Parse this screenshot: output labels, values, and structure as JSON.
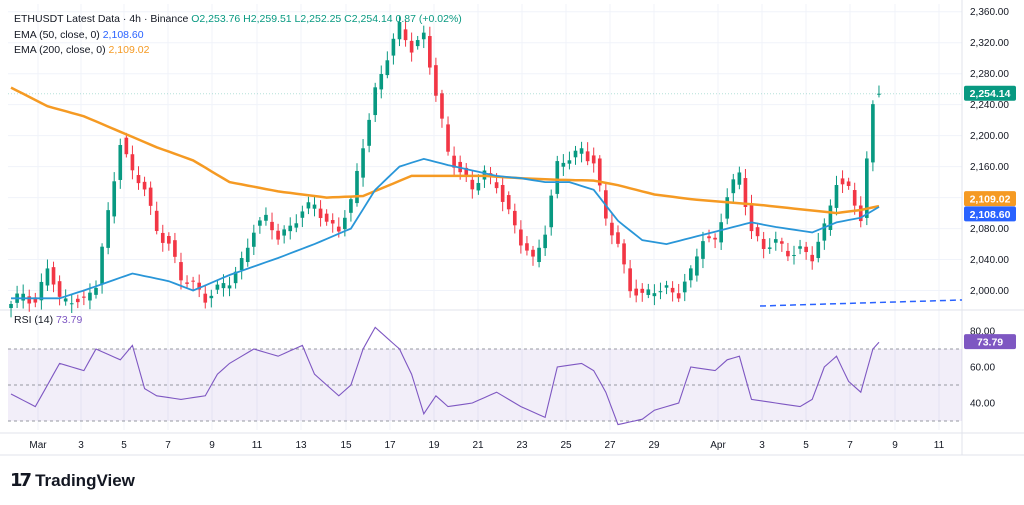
{
  "legend": {
    "symbol": "ETHUSDT Latest Data · 4h · Binance",
    "ohlc": "O2,253.76  H2,259.51  L2,252.25  C2,254.14  0.87 (+0.02%)",
    "ema50_label": "EMA (50, close, 0)",
    "ema50_value": "2,108.60",
    "ema200_label": "EMA (200, close, 0)",
    "ema200_value": "2,109.02",
    "rsi_label": "RSI (14)",
    "rsi_value": "73.79"
  },
  "brand": {
    "name": "TradingView"
  },
  "colors": {
    "up": "#089981",
    "down": "#f23645",
    "ema50": "#2962ff",
    "ema200": "#f59a23",
    "rsi": "#7e57c2"
  },
  "chart_data": {
    "type": "candlestick",
    "title": "ETHUSDT Latest Data · 4h · Binance",
    "price_ylim": [
      1980,
      2370
    ],
    "price_ticks": [
      "2,360.00",
      "2,320.00",
      "2,280.00",
      "2,240.00",
      "2,200.00",
      "2,160.00",
      "2,120.00",
      "2,080.00",
      "2,040.00",
      "2,000.00"
    ],
    "x_ticks": [
      "Mar",
      "3",
      "5",
      "7",
      "9",
      "11",
      "13",
      "15",
      "17",
      "19",
      "21",
      "23",
      "25",
      "27",
      "29",
      "Apr",
      "3",
      "5",
      "7",
      "9",
      "11"
    ],
    "price_anchors": [
      [
        0,
        1979
      ],
      [
        2,
        1998
      ],
      [
        4,
        1985
      ],
      [
        6,
        2030
      ],
      [
        8,
        1985
      ],
      [
        10,
        1992
      ],
      [
        12,
        1986
      ],
      [
        14,
        2005
      ],
      [
        16,
        2100
      ],
      [
        18,
        2195
      ],
      [
        20,
        2150
      ],
      [
        22,
        2130
      ],
      [
        24,
        2080
      ],
      [
        26,
        2060
      ],
      [
        28,
        2012
      ],
      [
        30,
        2010
      ],
      [
        32,
        1992
      ],
      [
        34,
        2000
      ],
      [
        36,
        2010
      ],
      [
        38,
        2040
      ],
      [
        40,
        2080
      ],
      [
        42,
        2090
      ],
      [
        44,
        2070
      ],
      [
        46,
        2085
      ],
      [
        48,
        2100
      ],
      [
        50,
        2110
      ],
      [
        52,
        2090
      ],
      [
        54,
        2080
      ],
      [
        56,
        2110
      ],
      [
        58,
        2190
      ],
      [
        60,
        2260
      ],
      [
        62,
        2300
      ],
      [
        64,
        2340
      ],
      [
        66,
        2315
      ],
      [
        68,
        2330
      ],
      [
        70,
        2250
      ],
      [
        72,
        2180
      ],
      [
        74,
        2155
      ],
      [
        76,
        2130
      ],
      [
        78,
        2150
      ],
      [
        80,
        2140
      ],
      [
        82,
        2100
      ],
      [
        84,
        2060
      ],
      [
        86,
        2040
      ],
      [
        88,
        2080
      ],
      [
        90,
        2160
      ],
      [
        92,
        2170
      ],
      [
        94,
        2185
      ],
      [
        96,
        2165
      ],
      [
        98,
        2090
      ],
      [
        100,
        2060
      ],
      [
        102,
        2005
      ],
      [
        104,
        1990
      ],
      [
        106,
        2000
      ],
      [
        108,
        2005
      ],
      [
        110,
        1995
      ],
      [
        112,
        2020
      ],
      [
        114,
        2070
      ],
      [
        116,
        2065
      ],
      [
        118,
        2120
      ],
      [
        120,
        2150
      ],
      [
        122,
        2080
      ],
      [
        124,
        2055
      ],
      [
        126,
        2060
      ],
      [
        128,
        2050
      ],
      [
        130,
        2055
      ],
      [
        132,
        2040
      ],
      [
        134,
        2080
      ],
      [
        136,
        2145
      ],
      [
        138,
        2130
      ],
      [
        140,
        2090
      ],
      [
        142,
        2240
      ],
      [
        143,
        2254
      ]
    ],
    "ema50_anchors": [
      [
        0,
        1990
      ],
      [
        8,
        1990
      ],
      [
        12,
        2000
      ],
      [
        20,
        2022
      ],
      [
        26,
        2012
      ],
      [
        30,
        2000
      ],
      [
        36,
        2020
      ],
      [
        44,
        2042
      ],
      [
        50,
        2060
      ],
      [
        56,
        2080
      ],
      [
        60,
        2130
      ],
      [
        64,
        2160
      ],
      [
        68,
        2170
      ],
      [
        72,
        2162
      ],
      [
        76,
        2155
      ],
      [
        80,
        2148
      ],
      [
        84,
        2145
      ],
      [
        88,
        2140
      ],
      [
        92,
        2140
      ],
      [
        96,
        2130
      ],
      [
        100,
        2090
      ],
      [
        104,
        2065
      ],
      [
        108,
        2060
      ],
      [
        112,
        2068
      ],
      [
        118,
        2080
      ],
      [
        122,
        2088
      ],
      [
        126,
        2082
      ],
      [
        132,
        2075
      ],
      [
        136,
        2088
      ],
      [
        140,
        2094
      ],
      [
        143,
        2108
      ]
    ],
    "ema200_anchors": [
      [
        0,
        2262
      ],
      [
        6,
        2238
      ],
      [
        12,
        2225
      ],
      [
        18,
        2205
      ],
      [
        24,
        2185
      ],
      [
        30,
        2168
      ],
      [
        36,
        2140
      ],
      [
        44,
        2128
      ],
      [
        52,
        2120
      ],
      [
        58,
        2122
      ],
      [
        62,
        2135
      ],
      [
        66,
        2148
      ],
      [
        72,
        2148
      ],
      [
        78,
        2148
      ],
      [
        84,
        2145
      ],
      [
        90,
        2143
      ],
      [
        96,
        2142
      ],
      [
        100,
        2136
      ],
      [
        106,
        2124
      ],
      [
        112,
        2118
      ],
      [
        118,
        2114
      ],
      [
        124,
        2110
      ],
      [
        130,
        2105
      ],
      [
        136,
        2100
      ],
      [
        140,
        2104
      ],
      [
        143,
        2109
      ]
    ],
    "rsi_ylim": [
      25,
      85
    ],
    "rsi_ticks": [
      "80.00",
      "60.00",
      "40.00"
    ],
    "rsi_anchors": [
      [
        0,
        45
      ],
      [
        4,
        38
      ],
      [
        8,
        62
      ],
      [
        12,
        58
      ],
      [
        14,
        70
      ],
      [
        18,
        64
      ],
      [
        20,
        72
      ],
      [
        22,
        48
      ],
      [
        24,
        44
      ],
      [
        28,
        42
      ],
      [
        32,
        44
      ],
      [
        34,
        56
      ],
      [
        36,
        62
      ],
      [
        40,
        70
      ],
      [
        44,
        66
      ],
      [
        48,
        72
      ],
      [
        50,
        56
      ],
      [
        54,
        44
      ],
      [
        56,
        50
      ],
      [
        58,
        70
      ],
      [
        60,
        82
      ],
      [
        62,
        76
      ],
      [
        64,
        70
      ],
      [
        66,
        56
      ],
      [
        68,
        34
      ],
      [
        70,
        44
      ],
      [
        72,
        38
      ],
      [
        76,
        40
      ],
      [
        80,
        46
      ],
      [
        84,
        38
      ],
      [
        88,
        32
      ],
      [
        90,
        60
      ],
      [
        94,
        62
      ],
      [
        96,
        58
      ],
      [
        98,
        46
      ],
      [
        100,
        28
      ],
      [
        104,
        31
      ],
      [
        106,
        36
      ],
      [
        110,
        40
      ],
      [
        112,
        60
      ],
      [
        116,
        58
      ],
      [
        118,
        64
      ],
      [
        120,
        66
      ],
      [
        122,
        42
      ],
      [
        126,
        40
      ],
      [
        130,
        38
      ],
      [
        132,
        42
      ],
      [
        134,
        60
      ],
      [
        136,
        66
      ],
      [
        138,
        52
      ],
      [
        140,
        46
      ],
      [
        142,
        70
      ],
      [
        143,
        73.79
      ]
    ],
    "last_price": "2,254.14",
    "ema200_last": "2,109.02",
    "ema50_last": "2,108.60",
    "rsi_last": "73.79",
    "candle_count": 144
  }
}
